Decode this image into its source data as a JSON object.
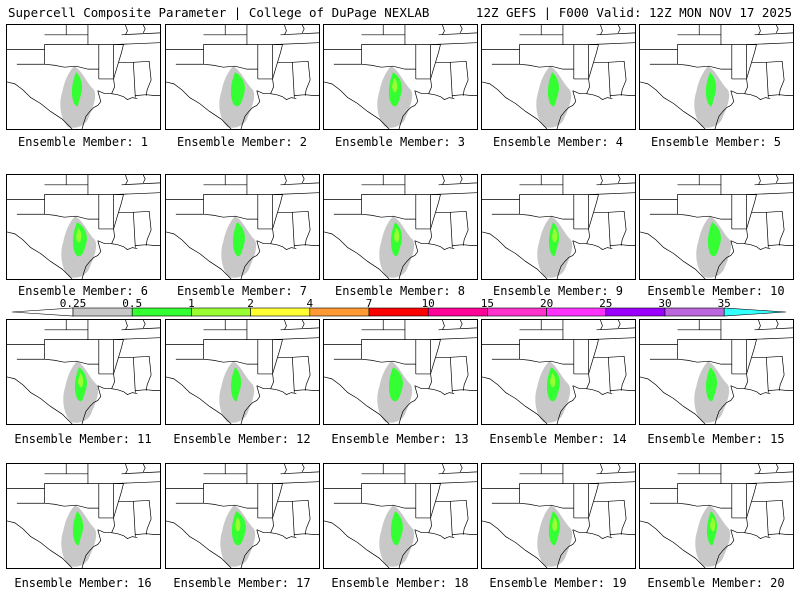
{
  "header": {
    "title_left": "Supercell Composite Parameter | College of DuPage NEXLAB",
    "title_right": "12Z GEFS | F000 Valid: 12Z MON NOV 17 2025"
  },
  "members": [
    {
      "label": "Ensemble Member: 1"
    },
    {
      "label": "Ensemble Member: 2"
    },
    {
      "label": "Ensemble Member: 3"
    },
    {
      "label": "Ensemble Member: 4"
    },
    {
      "label": "Ensemble Member: 5"
    },
    {
      "label": "Ensemble Member: 6"
    },
    {
      "label": "Ensemble Member: 7"
    },
    {
      "label": "Ensemble Member: 8"
    },
    {
      "label": "Ensemble Member: 9"
    },
    {
      "label": "Ensemble Member: 10"
    },
    {
      "label": "Ensemble Member: 11"
    },
    {
      "label": "Ensemble Member: 12"
    },
    {
      "label": "Ensemble Member: 13"
    },
    {
      "label": "Ensemble Member: 14"
    },
    {
      "label": "Ensemble Member: 15"
    },
    {
      "label": "Ensemble Member: 16"
    },
    {
      "label": "Ensemble Member: 17"
    },
    {
      "label": "Ensemble Member: 18"
    },
    {
      "label": "Ensemble Member: 19"
    },
    {
      "label": "Ensemble Member: 20"
    }
  ],
  "colorbar": {
    "levels": [
      "0.25",
      "0.5",
      "1",
      "2",
      "4",
      "7",
      "10",
      "15",
      "20",
      "25",
      "30",
      "35"
    ],
    "colors": [
      "#c8c8c8",
      "#33ff33",
      "#99ff33",
      "#ffff33",
      "#ff9933",
      "#ff0000",
      "#ff0099",
      "#ff33cc",
      "#ff33ff",
      "#9900ff",
      "#bb66dd",
      "#33ffff"
    ]
  }
}
